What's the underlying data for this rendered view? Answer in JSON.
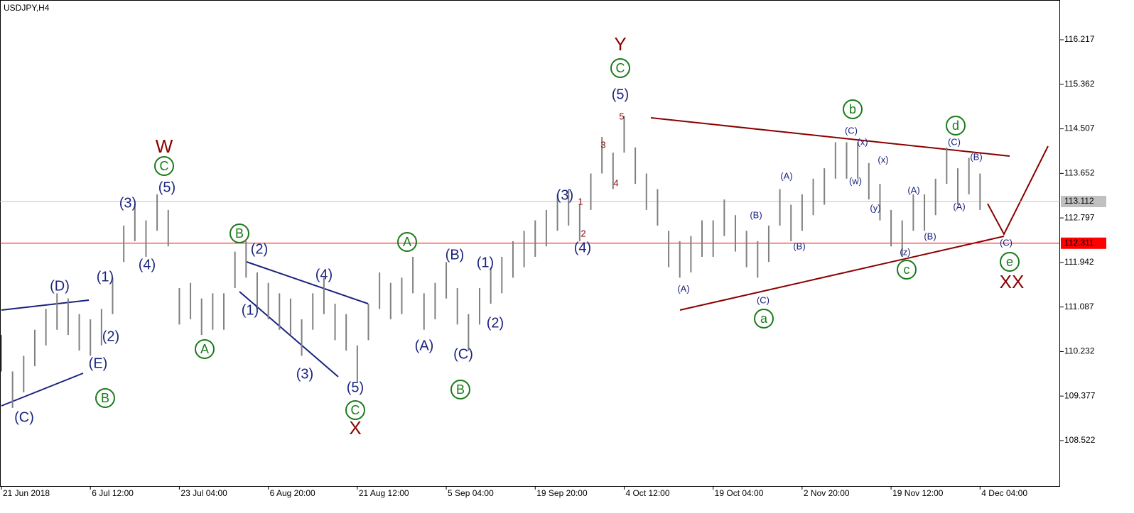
{
  "chart_data": {
    "type": "ohlc",
    "title": "USDJPY,H4",
    "x": [
      0,
      2,
      4,
      6,
      8,
      10,
      12,
      14,
      16,
      18,
      20,
      22,
      24,
      26,
      28,
      30,
      32,
      34,
      36,
      38,
      40,
      42,
      44,
      46,
      48,
      50,
      52,
      54,
      56,
      58,
      60,
      62,
      64,
      66,
      68,
      70,
      72,
      74,
      76,
      78,
      80,
      82,
      84,
      86,
      88,
      90,
      92,
      94,
      96,
      98,
      100,
      102,
      104,
      106,
      108,
      110,
      112,
      114,
      116,
      118,
      120,
      122,
      124,
      126,
      128,
      130,
      132,
      134,
      136,
      138,
      140,
      142,
      144,
      146,
      148,
      150,
      152,
      154,
      156,
      158,
      160,
      162,
      164,
      166,
      168,
      170,
      172,
      174,
      176
    ],
    "high": [
      110.55,
      109.85,
      110.15,
      110.65,
      111.05,
      111.35,
      111.25,
      110.95,
      110.85,
      111.05,
      111.65,
      112.65,
      113.05,
      112.75,
      113.25,
      112.95,
      111.45,
      111.55,
      111.25,
      111.35,
      111.35,
      112.15,
      112.35,
      111.75,
      111.55,
      111.35,
      111.25,
      110.85,
      111.35,
      111.65,
      111.15,
      110.95,
      110.35,
      111.15,
      111.75,
      111.55,
      111.65,
      112.05,
      111.35,
      111.55,
      111.95,
      111.45,
      110.95,
      111.45,
      111.85,
      112.05,
      112.35,
      112.55,
      112.75,
      112.95,
      113.25,
      113.35,
      113.05,
      113.65,
      114.35,
      114.05,
      114.75,
      114.15,
      113.65,
      113.35,
      112.55,
      112.35,
      112.45,
      112.75,
      112.75,
      113.15,
      112.85,
      112.55,
      112.35,
      112.65,
      113.35,
      113.05,
      113.25,
      113.55,
      113.75,
      114.25,
      114.25,
      114.25,
      113.85,
      113.45,
      112.95,
      112.75,
      113.25,
      113.25,
      113.55,
      114.15,
      113.75,
      113.95,
      113.65
    ],
    "low": [
      109.85,
      109.15,
      109.45,
      109.95,
      110.35,
      110.65,
      110.55,
      110.25,
      110.15,
      110.35,
      110.95,
      111.95,
      112.35,
      112.05,
      112.55,
      112.25,
      110.75,
      110.85,
      110.55,
      110.65,
      110.65,
      111.45,
      111.65,
      111.05,
      110.85,
      110.65,
      110.55,
      110.15,
      110.65,
      110.95,
      110.45,
      110.25,
      109.65,
      110.45,
      111.05,
      110.85,
      110.95,
      111.35,
      110.65,
      110.85,
      111.25,
      110.75,
      110.25,
      110.75,
      111.15,
      111.35,
      111.65,
      111.85,
      112.05,
      112.25,
      112.55,
      112.65,
      112.35,
      112.95,
      113.65,
      113.35,
      114.05,
      113.45,
      112.95,
      112.65,
      111.85,
      111.65,
      111.75,
      112.05,
      112.05,
      112.45,
      112.15,
      111.85,
      111.65,
      111.95,
      112.65,
      112.35,
      112.55,
      112.85,
      113.05,
      113.55,
      113.55,
      113.55,
      113.15,
      112.75,
      112.25,
      112.05,
      112.55,
      112.55,
      112.85,
      113.45,
      113.05,
      113.25,
      112.95
    ],
    "color": "#808080",
    "xlim": [
      0,
      190.4
    ],
    "ylim": [
      107.65,
      116.98
    ],
    "xticks": [
      {
        "value": 0,
        "label": "21 Jun 2018"
      },
      {
        "value": 16,
        "label": "6 Jul 12:00"
      },
      {
        "value": 32,
        "label": "23 Jul 04:00"
      },
      {
        "value": 48,
        "label": "6 Aug 20:00"
      },
      {
        "value": 64,
        "label": "21 Aug 12:00"
      },
      {
        "value": 80,
        "label": "5 Sep 04:00"
      },
      {
        "value": 96,
        "label": "19 Sep 20:00"
      },
      {
        "value": 112,
        "label": "4 Oct 12:00"
      },
      {
        "value": 128,
        "label": "19 Oct 04:00"
      },
      {
        "value": 144,
        "label": "2 Nov 20:00"
      },
      {
        "value": 160,
        "label": "19 Nov 12:00"
      },
      {
        "value": 176,
        "label": "4 Dec 04:00"
      }
    ],
    "yticks": [
      116.217,
      115.362,
      114.507,
      113.652,
      112.797,
      111.942,
      111.087,
      110.232,
      109.377,
      108.522
    ],
    "levels": [
      {
        "value": 113.112,
        "color": "#c0c0c0"
      },
      {
        "value": 112.311,
        "color": "#ff0000"
      }
    ]
  },
  "annotations": [
    "(C)",
    "(D)",
    "(E)",
    "(2)",
    "(1)",
    "(3)",
    "(4)",
    "(5)",
    "(2)",
    "(1)",
    "(4)",
    "(3)",
    "(5)",
    "(B)",
    "(1)",
    "(A)",
    "(C)",
    "(2)",
    "(3)",
    "(4)",
    "(5)",
    "B",
    "C",
    "A",
    "B",
    "C",
    "A",
    "B",
    "C",
    "a",
    "b",
    "c",
    "d",
    "e",
    "W",
    "X",
    "Y",
    "XX",
    "1",
    "2",
    "3",
    "4",
    "5",
    "(A)",
    "(C)",
    "(B)",
    "(B)",
    "(A)",
    "(C)",
    "(x)",
    "(w)",
    "(x)",
    "(y)",
    "(A)",
    "(z)",
    "(B)",
    "(C)",
    "(B)",
    "(A)",
    "(C)"
  ]
}
